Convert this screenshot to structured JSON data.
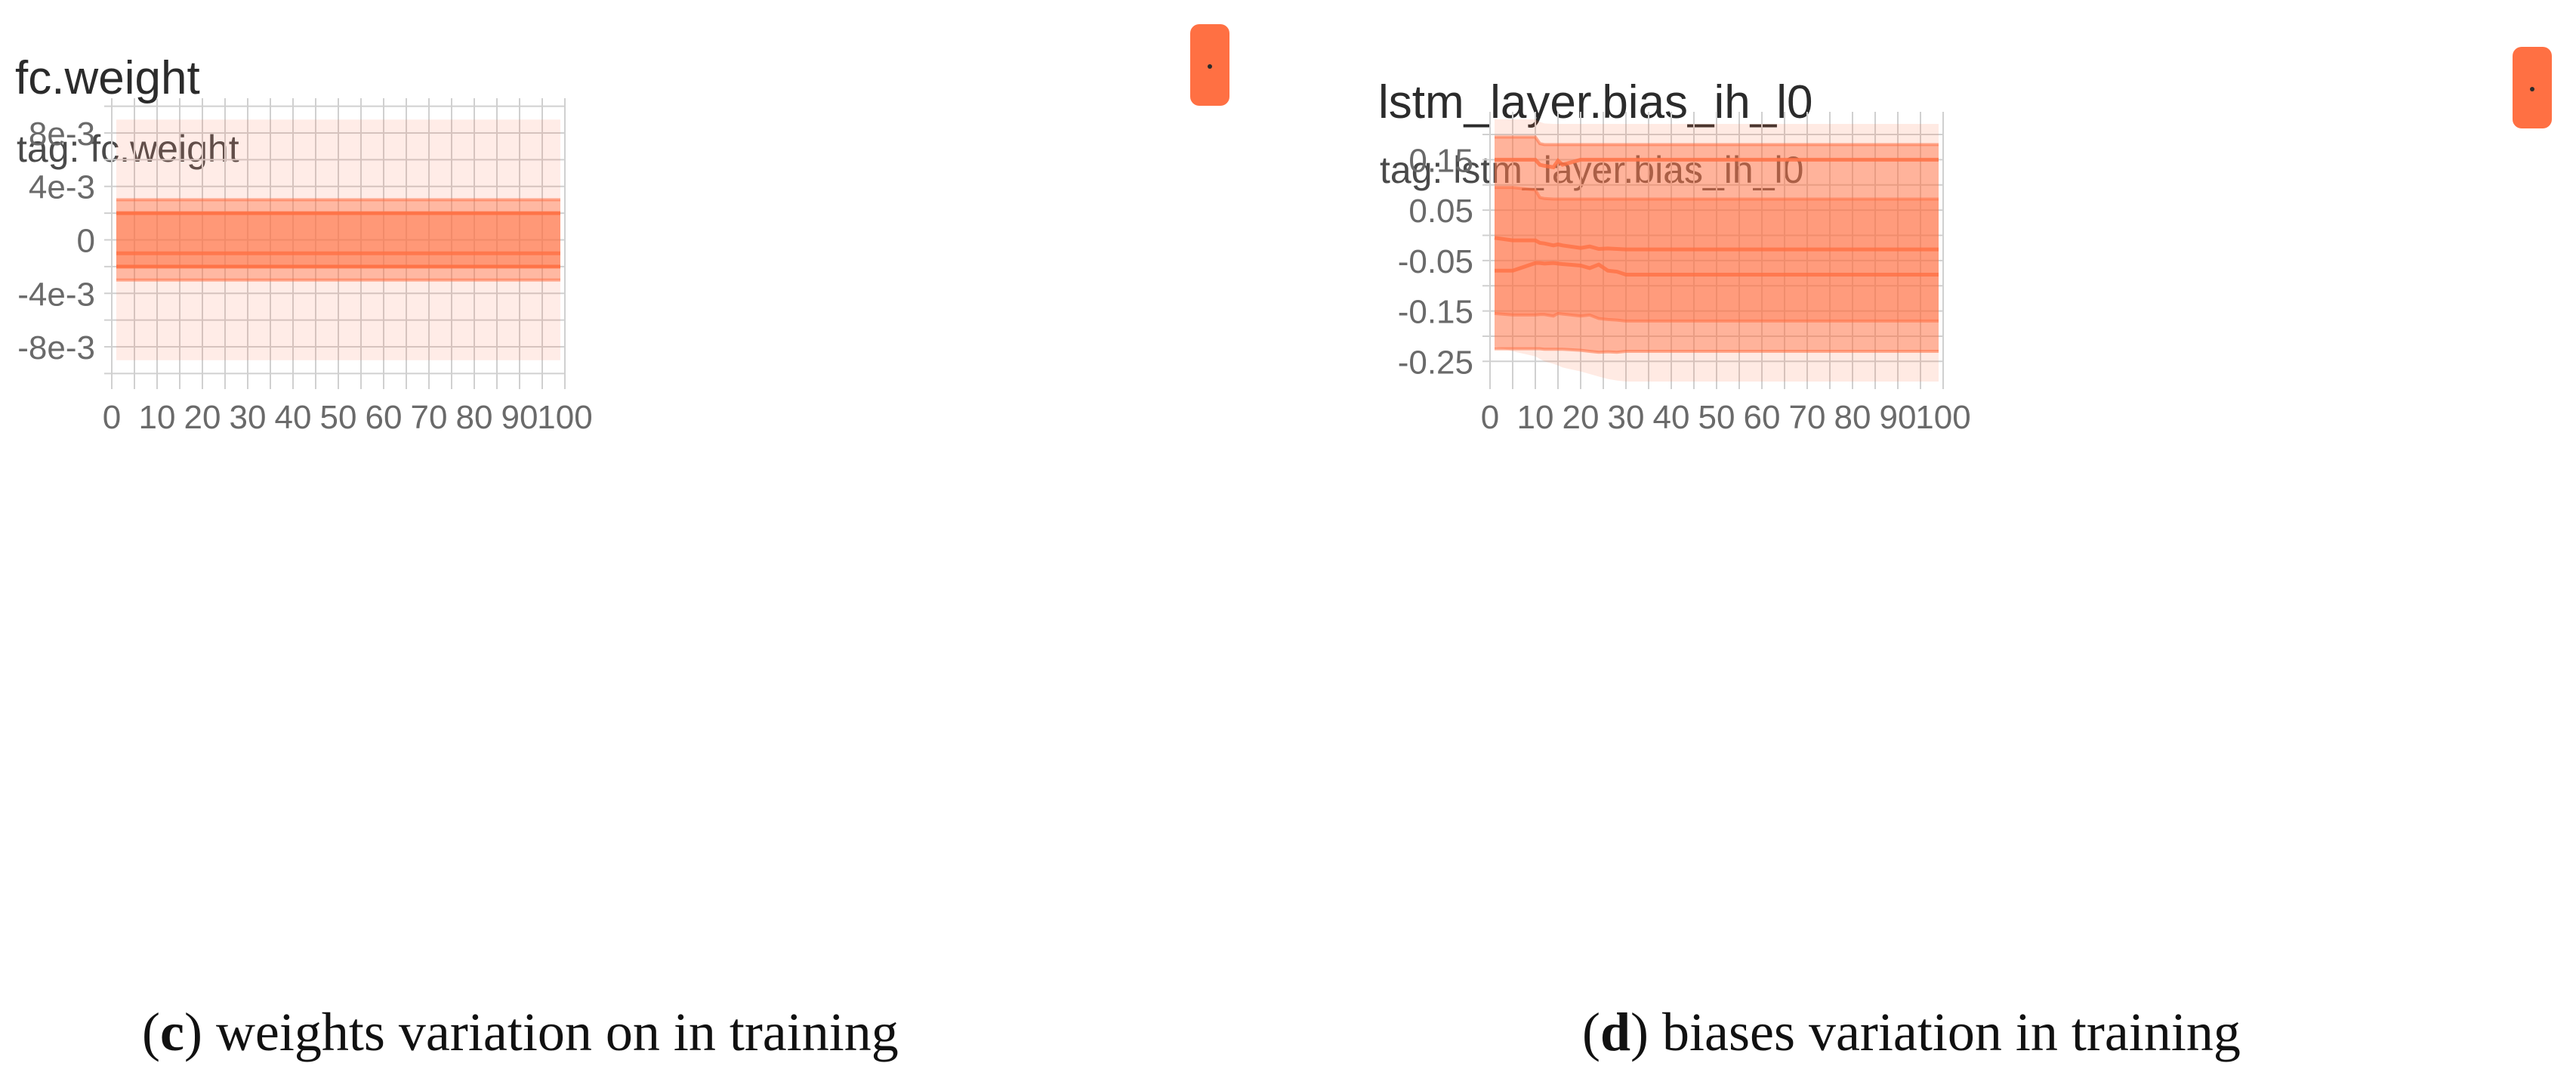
{
  "colors": {
    "series": "#ff7043",
    "grid": "#d0d0d0",
    "tick": "#6a6a6a"
  },
  "toggle_icon": "square-dot-toggle-icon",
  "chart_data": [
    {
      "id": "c",
      "type": "area",
      "title": "fc.weight",
      "tag": "tag: fc.weight",
      "caption": {
        "letter": "c",
        "text": "weights variation on in training"
      },
      "xlim": [
        0,
        100
      ],
      "ylim": [
        -0.0106,
        0.0106
      ],
      "xticks": [
        0,
        10,
        20,
        30,
        40,
        50,
        60,
        70,
        80,
        90,
        100
      ],
      "yticks": [
        0.008,
        0.004,
        0,
        -0.004,
        -0.008
      ],
      "ytick_labels": [
        "8e-3",
        "4e-3",
        "0",
        "-4e-3",
        "-8e-3"
      ],
      "x": [
        1,
        99
      ],
      "bands": [
        {
          "name": "outer",
          "upper": [
            0.009,
            0.009
          ],
          "lower": [
            -0.009,
            -0.009
          ],
          "opacity": 0.13
        },
        {
          "name": "mid",
          "upper": [
            0.003,
            0.003
          ],
          "lower": [
            -0.003,
            -0.003
          ],
          "opacity": 0.42
        },
        {
          "name": "inner",
          "upper": [
            0.002,
            0.002
          ],
          "lower": [
            -0.002,
            -0.002
          ],
          "opacity": 0.45
        }
      ],
      "lines": [
        {
          "name": "median",
          "y": [
            -0.001,
            -0.001
          ]
        },
        {
          "name": "p25",
          "y": [
            -0.002,
            -0.002
          ]
        },
        {
          "name": "p75",
          "y": [
            0.002,
            0.002
          ]
        }
      ]
    },
    {
      "id": "d",
      "type": "area",
      "title": "lstm_layer.bias_ih_l0",
      "tag": "tag: lstm_layer.bias_ih_l0",
      "caption": {
        "letter": "d",
        "text": "biases variation in training"
      },
      "xlim": [
        0,
        100
      ],
      "ylim": [
        -0.29,
        0.245
      ],
      "xticks": [
        0,
        10,
        20,
        30,
        40,
        50,
        60,
        70,
        80,
        90,
        100
      ],
      "yticks": [
        0.15,
        0.05,
        -0.05,
        -0.15,
        -0.25
      ],
      "ytick_labels": [
        "0.15",
        "0.05",
        "-0.05",
        "-0.15",
        "-0.25"
      ],
      "x": [
        1,
        5,
        10,
        11,
        12,
        14,
        15,
        16,
        20,
        22,
        24,
        26,
        28,
        30,
        99
      ],
      "bands": [
        {
          "name": "outer",
          "upper": [
            0.23,
            0.23,
            0.23,
            0.225,
            0.222,
            0.221,
            0.221,
            0.221,
            0.221,
            0.221,
            0.221,
            0.221,
            0.221,
            0.221,
            0.221
          ],
          "lower": [
            -0.22,
            -0.23,
            -0.24,
            -0.245,
            -0.25,
            -0.255,
            -0.258,
            -0.262,
            -0.27,
            -0.275,
            -0.28,
            -0.285,
            -0.288,
            -0.29,
            -0.29
          ],
          "opacity": 0.15
        },
        {
          "name": "mid",
          "upper": [
            0.195,
            0.195,
            0.195,
            0.182,
            0.18,
            0.18,
            0.18,
            0.18,
            0.18,
            0.18,
            0.18,
            0.18,
            0.18,
            0.18,
            0.18
          ],
          "lower": [
            -0.225,
            -0.225,
            -0.225,
            -0.225,
            -0.226,
            -0.226,
            -0.226,
            -0.226,
            -0.228,
            -0.23,
            -0.232,
            -0.231,
            -0.232,
            -0.23,
            -0.23
          ],
          "opacity": 0.45
        },
        {
          "name": "inner",
          "upper": [
            0.095,
            0.095,
            0.09,
            0.075,
            0.073,
            0.072,
            0.072,
            0.072,
            0.072,
            0.072,
            0.072,
            0.072,
            0.072,
            0.072,
            0.072
          ],
          "lower": [
            -0.155,
            -0.158,
            -0.158,
            -0.157,
            -0.157,
            -0.16,
            -0.155,
            -0.156,
            -0.16,
            -0.158,
            -0.165,
            -0.167,
            -0.168,
            -0.17,
            -0.17
          ],
          "opacity": 0.35
        }
      ],
      "lines": [
        {
          "name": "p75",
          "y": [
            0.15,
            0.15,
            0.15,
            0.14,
            0.138,
            0.135,
            0.148,
            0.14,
            0.15,
            0.15,
            0.15,
            0.15,
            0.15,
            0.15,
            0.15
          ]
        },
        {
          "name": "median",
          "y": [
            -0.005,
            -0.01,
            -0.01,
            -0.015,
            -0.016,
            -0.02,
            -0.018,
            -0.02,
            -0.025,
            -0.022,
            -0.027,
            -0.026,
            -0.027,
            -0.028,
            -0.028
          ]
        },
        {
          "name": "p25",
          "y": [
            -0.07,
            -0.07,
            -0.055,
            -0.055,
            -0.056,
            -0.055,
            -0.056,
            -0.057,
            -0.06,
            -0.065,
            -0.058,
            -0.07,
            -0.072,
            -0.078,
            -0.078
          ]
        }
      ]
    }
  ]
}
